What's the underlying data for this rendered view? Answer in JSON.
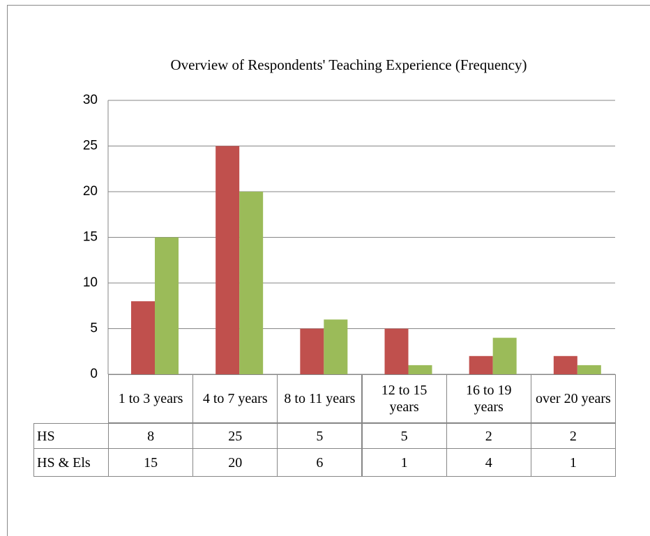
{
  "chart_data": {
    "type": "bar",
    "title": "Overview of Respondents' Teaching Experience (Frequency)",
    "categories": [
      "1 to 3 years",
      "4 to 7 years",
      "8 to 11 years",
      "12 to 15 years",
      "16 to 19 years",
      "over 20 years"
    ],
    "series": [
      {
        "name": "HS",
        "color": "#c0504d",
        "values": [
          8,
          25,
          5,
          5,
          2,
          2
        ]
      },
      {
        "name": "HS & Els",
        "color": "#9bbb59",
        "values": [
          15,
          20,
          6,
          1,
          4,
          1
        ]
      }
    ],
    "ylim": [
      0,
      30
    ],
    "yticks": [
      0,
      5,
      10,
      15,
      20,
      25,
      30
    ],
    "grid": true
  }
}
